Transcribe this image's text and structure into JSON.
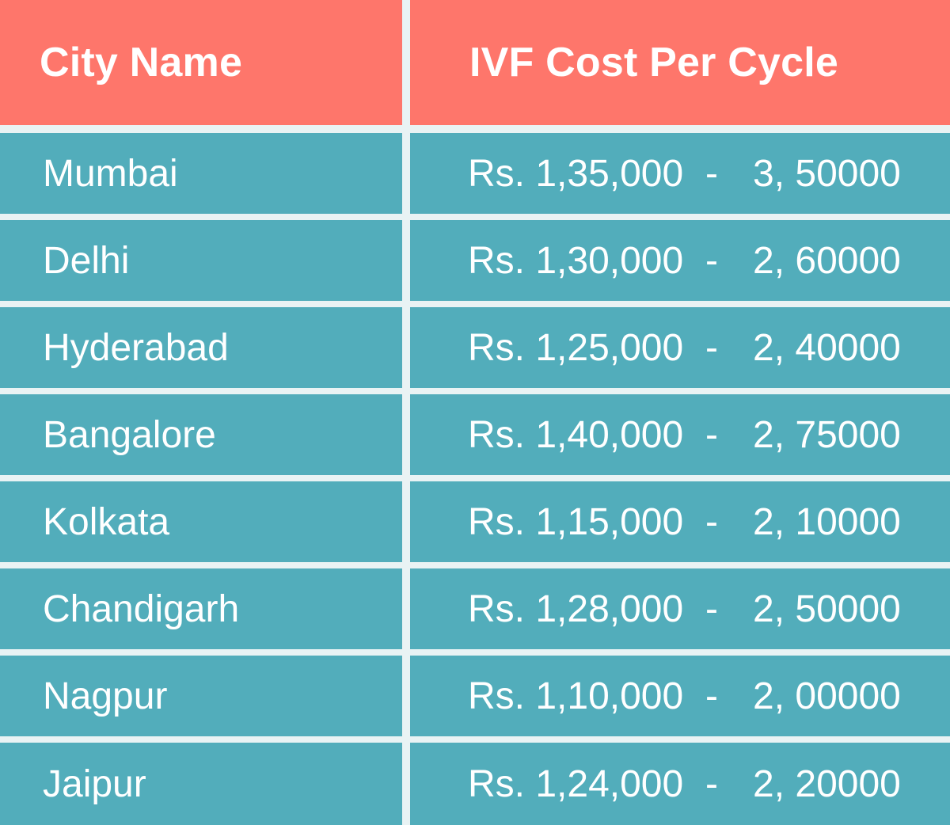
{
  "headers": {
    "city": "City Name",
    "cost": "IVF Cost Per Cycle"
  },
  "rows": [
    {
      "city": "Mumbai",
      "low": "Rs. 1,35,000",
      "sep": "-",
      "high": "3, 50000"
    },
    {
      "city": "Delhi",
      "low": "Rs. 1,30,000",
      "sep": "-",
      "high": "2, 60000"
    },
    {
      "city": "Hyderabad",
      "low": "Rs. 1,25,000",
      "sep": "-",
      "high": "2, 40000"
    },
    {
      "city": "Bangalore",
      "low": "Rs. 1,40,000",
      "sep": "-",
      "high": "2, 75000"
    },
    {
      "city": "Kolkata",
      "low": "Rs. 1,15,000",
      "sep": "-",
      "high": "2, 10000"
    },
    {
      "city": "Chandigarh",
      "low": "Rs. 1,28,000",
      "sep": "-",
      "high": "2, 50000"
    },
    {
      "city": "Nagpur",
      "low": "Rs. 1,10,000",
      "sep": "-",
      "high": "2, 00000"
    },
    {
      "city": "Jaipur",
      "low": "Rs. 1,24,000",
      "sep": "-",
      "high": "2, 20000"
    }
  ],
  "colors": {
    "header": "#fe766b",
    "body": "#52adbb",
    "divider": "#e9f3f4",
    "text": "#ffffff"
  }
}
